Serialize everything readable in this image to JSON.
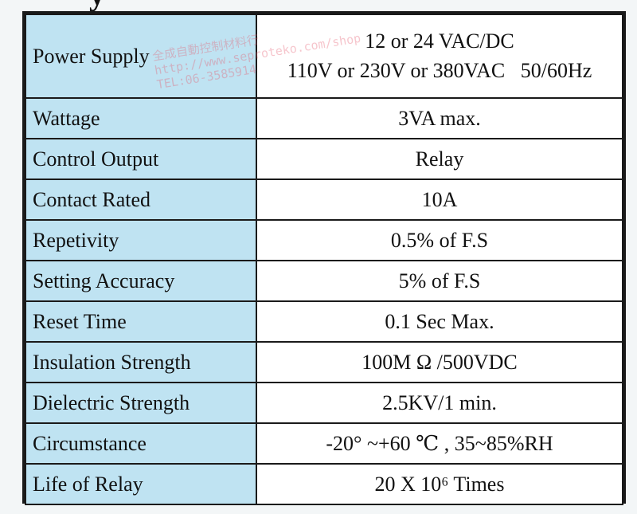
{
  "top_fragment": "y",
  "spec_table": {
    "rows": [
      {
        "label": "Power Supply",
        "value_lines": [
          "12 or 24 VAC/DC",
          "110V or 230V or 380VAC   50/60Hz"
        ]
      },
      {
        "label": "Wattage",
        "value": "3VA max."
      },
      {
        "label": "Control Output",
        "value": "Relay"
      },
      {
        "label": "Contact Rated",
        "value": "10A"
      },
      {
        "label": "Repetivity",
        "value": "0.5% of F.S"
      },
      {
        "label": "Setting Accuracy",
        "value": "5% of F.S"
      },
      {
        "label": "Reset Time",
        "value": "0.1 Sec Max."
      },
      {
        "label": "Insulation Strength",
        "value": "100M Ω /500VDC"
      },
      {
        "label": "Dielectric Strength",
        "value": "2.5KV/1 min."
      },
      {
        "label": "Circumstance",
        "value": "-20° ~+60 ℃ , 35~85%RH"
      },
      {
        "label": "Life of Relay",
        "value": "20 X 10⁶ Times"
      }
    ]
  },
  "watermark": {
    "lines": [
      "全成自動控制材料行",
      "http://www.seproteko.com/shop",
      "TEL:06-3585914"
    ]
  }
}
